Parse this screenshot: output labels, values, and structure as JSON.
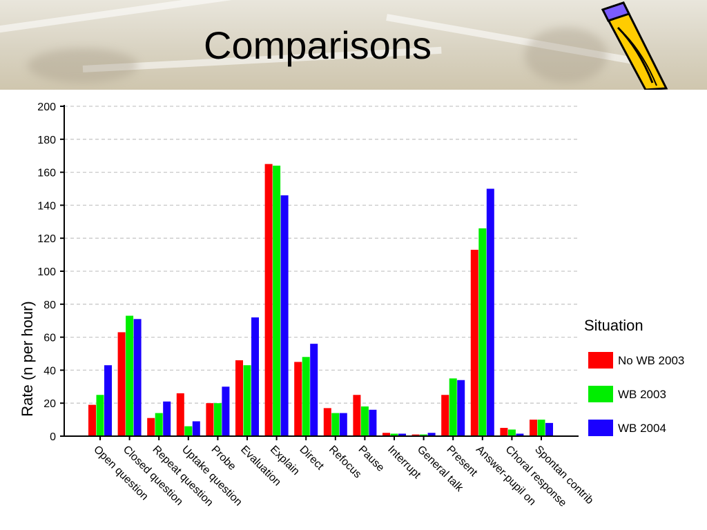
{
  "slide": {
    "title": "Comparisons"
  },
  "colors": {
    "no_wb_2003": "#ff0000",
    "wb_2003": "#00ee00",
    "wb_2004": "#1a00ff",
    "grid": "#c8c8c8",
    "axis": "#000000"
  },
  "chart_data": {
    "type": "bar",
    "title": "",
    "xlabel": "",
    "ylabel": "Rate (n per hour)",
    "ylim": [
      0,
      200
    ],
    "yticks": [
      0,
      20,
      40,
      60,
      80,
      100,
      120,
      140,
      160,
      180,
      200
    ],
    "grid": "horizontal dashed",
    "legend_title": "Situation",
    "legend_position": "right",
    "categories": [
      "Open question",
      "Closed question",
      "Repeat question",
      "Uptake question",
      "Probe",
      "Evaluation",
      "Explain",
      "Direct",
      "Refocus",
      "Pause",
      "Interrupt",
      "General talk",
      "Present",
      "Answer-pupil on",
      "Choral response",
      "Spontan contrib"
    ],
    "series": [
      {
        "name": "No WB 2003",
        "color": "#ff0000",
        "values": [
          19,
          63,
          11,
          26,
          20,
          46,
          165,
          45,
          17,
          25,
          2,
          1,
          25,
          113,
          5,
          10
        ]
      },
      {
        "name": "WB 2003",
        "color": "#00ee00",
        "values": [
          25,
          73,
          14,
          6,
          20,
          43,
          164,
          48,
          14,
          18,
          1.5,
          1,
          35,
          126,
          4,
          10
        ]
      },
      {
        "name": "WB 2004",
        "color": "#1a00ff",
        "values": [
          43,
          71,
          21,
          9,
          30,
          72,
          146,
          56,
          14,
          16,
          1.5,
          2,
          34,
          150,
          1.5,
          8
        ]
      }
    ]
  }
}
